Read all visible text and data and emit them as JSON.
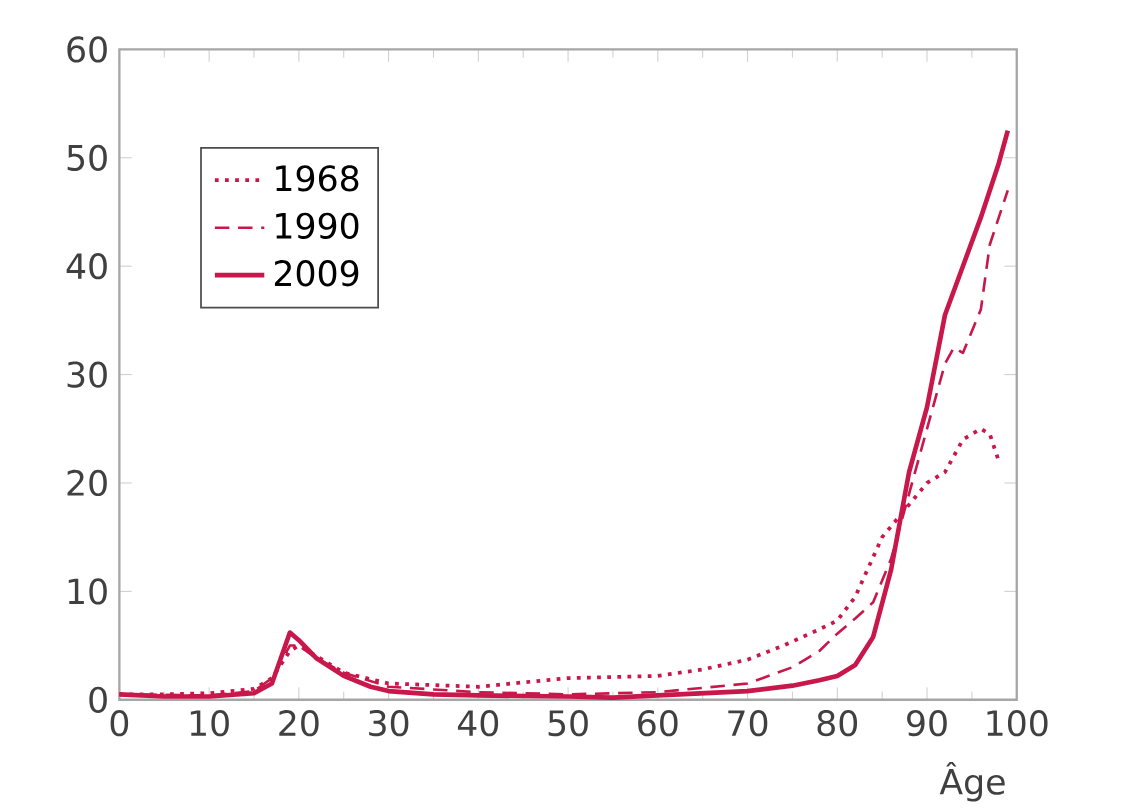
{
  "chart_data": {
    "type": "line",
    "xlabel": "Âge",
    "xlim": [
      0,
      100
    ],
    "ylim": [
      0,
      60
    ],
    "xticks": [
      0,
      10,
      20,
      30,
      40,
      50,
      60,
      70,
      80,
      90,
      100
    ],
    "yticks": [
      0,
      10,
      20,
      30,
      40,
      50,
      60
    ],
    "legend": "top left",
    "grid": false,
    "marker": "none",
    "series": [
      {
        "name": "1968",
        "color": "#c8174a",
        "line_style": "dotted",
        "x": [
          0,
          5,
          10,
          15,
          17,
          19,
          20,
          22,
          25,
          30,
          40,
          50,
          60,
          65,
          70,
          74,
          78,
          80,
          82,
          85,
          88,
          90,
          92,
          94,
          96,
          97,
          98
        ],
        "values": [
          0.5,
          0.5,
          0.6,
          1,
          2,
          4.5,
          5,
          4,
          2.5,
          1.5,
          1.2,
          2,
          2.2,
          2.8,
          3.7,
          5,
          6.5,
          7.3,
          9.5,
          15,
          18,
          20,
          21,
          24,
          25,
          24.5,
          22
        ]
      },
      {
        "name": "1990",
        "color": "#c8174a",
        "line_style": "dashed",
        "x": [
          0,
          10,
          15,
          17,
          19,
          20,
          22,
          25,
          30,
          40,
          50,
          60,
          70,
          75,
          78,
          80,
          82,
          84,
          86,
          88,
          90,
          92,
          93,
          94,
          96,
          97,
          99
        ],
        "values": [
          0.5,
          0.4,
          0.8,
          2,
          5,
          5,
          3.8,
          2.5,
          1.2,
          0.7,
          0.5,
          0.7,
          1.5,
          3,
          4.5,
          6.1,
          7.5,
          9,
          13,
          19,
          25,
          31,
          32.5,
          32,
          36,
          42,
          47
        ]
      },
      {
        "name": "2009",
        "color": "#c8174a",
        "line_style": "solid",
        "x": [
          0,
          5,
          10,
          15,
          17,
          19,
          20,
          22,
          25,
          28,
          30,
          35,
          40,
          50,
          55,
          60,
          65,
          70,
          75,
          78,
          80,
          82,
          84,
          86,
          88,
          90,
          92,
          94,
          96,
          98,
          99
        ],
        "values": [
          0.5,
          0.3,
          0.3,
          0.6,
          1.5,
          6.2,
          5.5,
          3.8,
          2.2,
          1.2,
          0.8,
          0.5,
          0.4,
          0.3,
          0.2,
          0.4,
          0.6,
          0.8,
          1.3,
          1.8,
          2.2,
          3.2,
          5.8,
          12,
          21,
          27,
          35.5,
          40,
          44.5,
          49.5,
          52.5
        ]
      }
    ]
  }
}
